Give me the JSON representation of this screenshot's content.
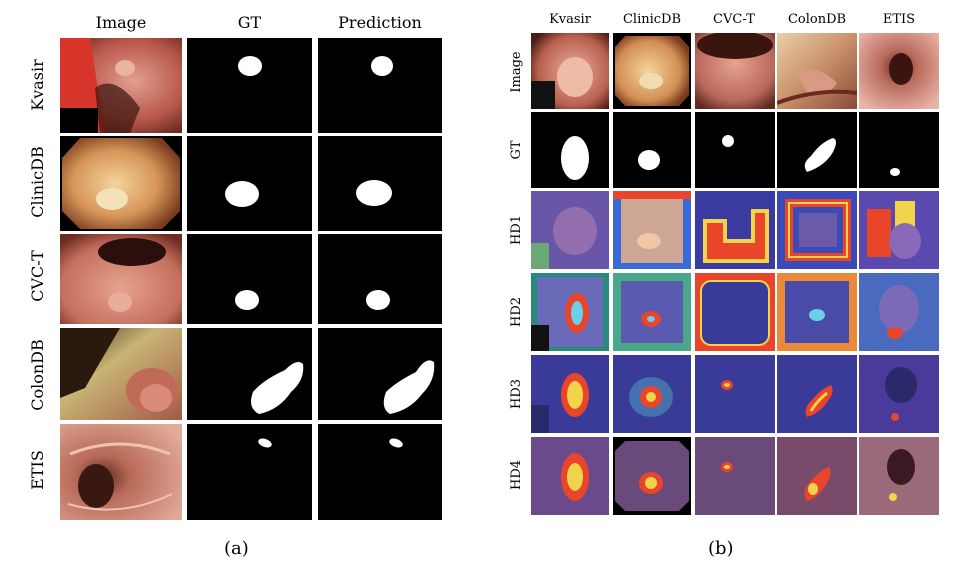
{
  "panel_a": {
    "caption": "(a)",
    "columns": [
      "Image",
      "GT",
      "Prediction"
    ],
    "rows": [
      "Kvasir",
      "ClinicDB",
      "CVC-T",
      "ColonDB",
      "ETIS"
    ]
  },
  "panel_b": {
    "caption": "(b)",
    "columns": [
      "Kvasir",
      "ClinicDB",
      "CVC-T",
      "ColonDB",
      "ETIS"
    ],
    "rows": [
      "Image",
      "GT",
      "HD1",
      "HD2",
      "HD3",
      "HD4"
    ]
  },
  "colors": {
    "mask_background": "#000000",
    "mask_foreground": "#ffffff",
    "tissue_pink": "#d98a82",
    "heatmap_blue": "#4a3f9a",
    "heatmap_red": "#e8452a",
    "heatmap_yellow": "#f2d44a"
  }
}
